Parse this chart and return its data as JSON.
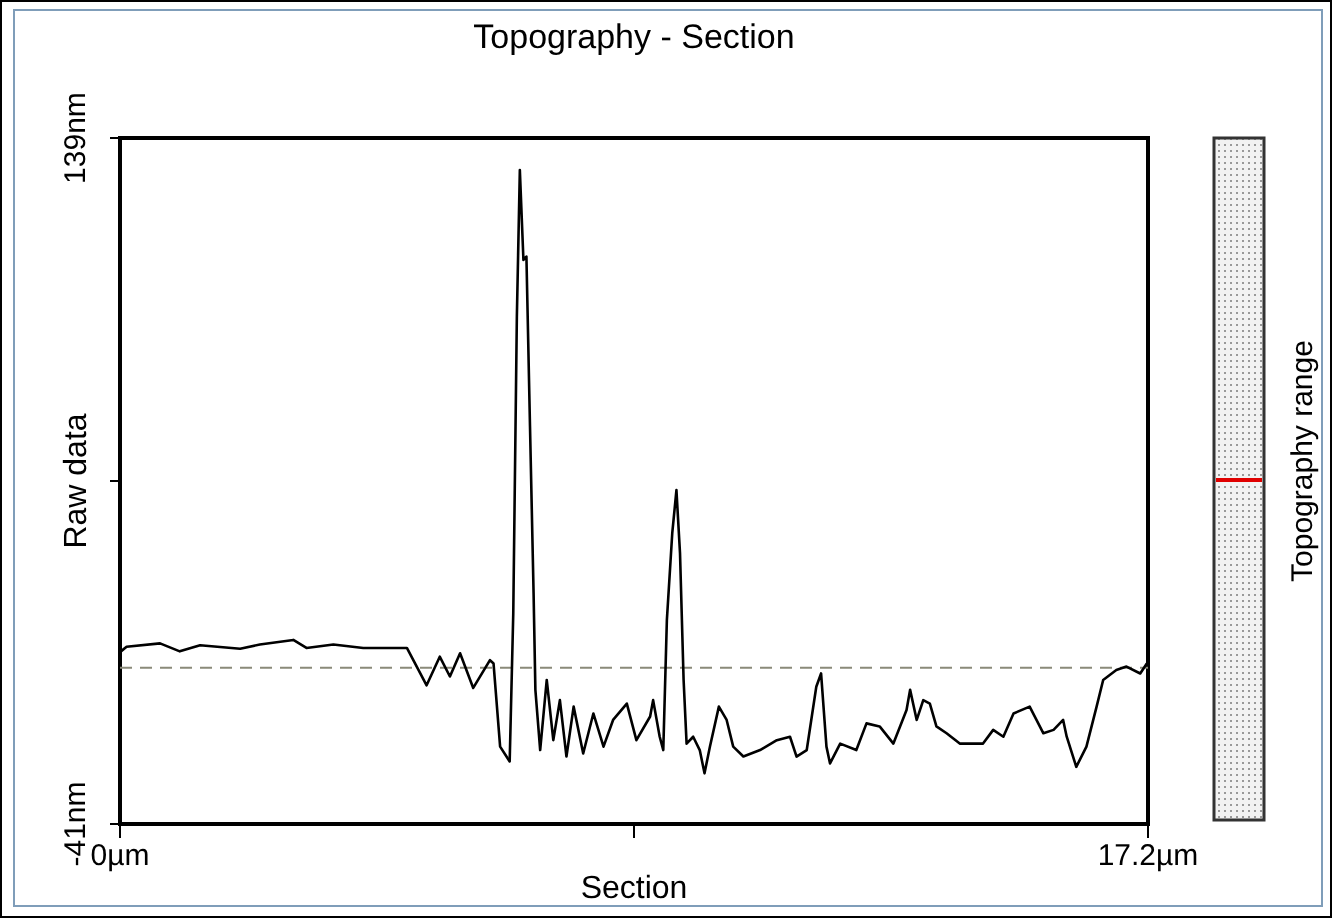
{
  "chart_data": {
    "type": "line",
    "title": "Topography - Section",
    "xlabel": "Section",
    "ylabel": "Raw data",
    "annotations": [
      "Topography range"
    ],
    "x": [
      0,
      0.11,
      0.67,
      1.0,
      1.34,
      2.01,
      2.34,
      2.9,
      3.12,
      3.57,
      4.07,
      4.8,
      5.13,
      5.35,
      5.52,
      5.69,
      5.91,
      6.19,
      6.25,
      6.36,
      6.52,
      6.58,
      6.64,
      6.69,
      6.75,
      6.8,
      6.86,
      6.92,
      6.95,
      7.03,
      7.14,
      7.25,
      7.36,
      7.47,
      7.59,
      7.75,
      7.92,
      8.09,
      8.25,
      8.48,
      8.64,
      8.87,
      8.92,
      9.03,
      9.09,
      9.15,
      9.24,
      9.31,
      9.37,
      9.43,
      9.48,
      9.59,
      9.7,
      9.78,
      9.87,
      10.02,
      10.15,
      10.26,
      10.43,
      10.71,
      10.99,
      11.21,
      11.32,
      11.49,
      11.65,
      11.73,
      11.82,
      11.88,
      12.05,
      12.32,
      12.49,
      12.71,
      12.94,
      13.16,
      13.22,
      13.33,
      13.44,
      13.55,
      13.66,
      13.83,
      14.05,
      14.44,
      14.61,
      14.78,
      14.95,
      15.22,
      15.45,
      15.62,
      15.78,
      15.84,
      16.0,
      16.17,
      16.34,
      16.45,
      16.67,
      16.84,
      17.07,
      17.18
    ],
    "series": [
      {
        "color": "#000000",
        "values": [
          4.1,
          5.5,
          6.4,
          4.3,
          5.9,
          5.0,
          6.1,
          7.3,
          5.2,
          6.1,
          5.2,
          5.2,
          -4.6,
          2.9,
          -2.3,
          3.8,
          -5.3,
          2.0,
          1.1,
          -20.7,
          -24.6,
          14.3,
          92.1,
          130.6,
          107.0,
          107.9,
          63.3,
          19.5,
          -5.8,
          -21.6,
          -3.2,
          -19.0,
          -8.5,
          -23.3,
          -10.2,
          -22.5,
          -12.0,
          -20.7,
          -13.7,
          -9.4,
          -19.0,
          -12.8,
          -8.5,
          -18.1,
          -21.6,
          12.5,
          35.3,
          46.6,
          30.0,
          -3.2,
          -19.9,
          -18.1,
          -21.6,
          -27.7,
          -20.7,
          -10.2,
          -13.7,
          -20.7,
          -23.3,
          -21.6,
          -19.0,
          -18.1,
          -23.3,
          -21.6,
          -5.0,
          -1.5,
          -20.7,
          -25.1,
          -19.9,
          -21.6,
          -14.6,
          -15.4,
          -19.9,
          -11.1,
          -5.8,
          -13.7,
          -8.5,
          -9.4,
          -15.4,
          -17.2,
          -19.9,
          -19.9,
          -16.3,
          -18.1,
          -12.0,
          -10.2,
          -17.2,
          -16.3,
          -13.7,
          -18.1,
          -26.0,
          -20.7,
          -10.2,
          -3.2,
          -0.6,
          0.3,
          -1.5,
          1.1
        ]
      }
    ],
    "xlim": [
      0,
      17.2
    ],
    "xticks": [
      {
        "value": 0,
        "label": "0µm"
      },
      {
        "value": 8.6,
        "label": null
      },
      {
        "value": 17.2,
        "label": "17.2µm"
      }
    ],
    "ylim": [
      -41,
      139
    ],
    "yticks": [
      {
        "value": -41,
        "label": "-41nm"
      },
      {
        "value": 49,
        "label": null
      },
      {
        "value": 139,
        "label": "139nm"
      }
    ],
    "ref_lines": [
      {
        "axis": "y",
        "value": 0,
        "color": "#8a8a7a",
        "line_style": "dashed"
      }
    ],
    "marker": "none",
    "line_style": "solid"
  }
}
